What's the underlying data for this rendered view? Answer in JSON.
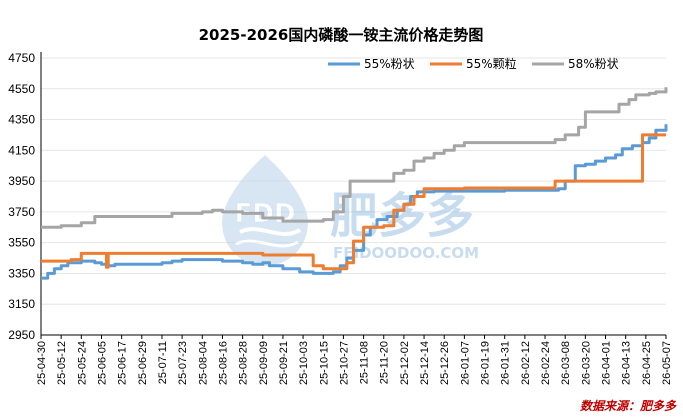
{
  "chart_data": {
    "type": "line",
    "title": "2025-2026国内磷酸一铵主流价格走势图",
    "xlabel": "",
    "ylabel": "",
    "ylim": [
      2950,
      4750
    ],
    "yticks": [
      2950,
      3150,
      3350,
      3550,
      3750,
      3950,
      4150,
      4350,
      4550,
      4750
    ],
    "xlim": [
      "2025-04-30",
      "2026-05-07"
    ],
    "xticks": [
      "25-04-30",
      "25-05-12",
      "25-05-24",
      "25-06-05",
      "25-06-17",
      "25-06-29",
      "25-07-11",
      "25-07-23",
      "25-08-04",
      "25-08-16",
      "25-08-28",
      "25-09-09",
      "25-09-21",
      "25-10-03",
      "25-10-15",
      "25-10-27",
      "25-11-08",
      "25-11-20",
      "25-12-02",
      "25-12-14",
      "25-12-26",
      "26-01-07",
      "26-01-19",
      "26-01-31",
      "26-02-12",
      "26-02-24",
      "26-03-08",
      "26-03-20",
      "26-04-01",
      "26-04-13",
      "26-04-25",
      "26-05-07"
    ],
    "legend_position": "top-right",
    "series": [
      {
        "name": "55%粉状",
        "color": "#5b9bd5",
        "points": [
          [
            "2025-04-30",
            3320
          ],
          [
            "2025-05-04",
            3350
          ],
          [
            "2025-05-08",
            3380
          ],
          [
            "2025-05-12",
            3400
          ],
          [
            "2025-05-16",
            3420
          ],
          [
            "2025-05-24",
            3430
          ],
          [
            "2025-06-01",
            3420
          ],
          [
            "2025-06-05",
            3410
          ],
          [
            "2025-06-09",
            3400
          ],
          [
            "2025-06-13",
            3410
          ],
          [
            "2025-06-29",
            3410
          ],
          [
            "2025-07-11",
            3420
          ],
          [
            "2025-07-17",
            3430
          ],
          [
            "2025-07-23",
            3440
          ],
          [
            "2025-08-04",
            3440
          ],
          [
            "2025-08-16",
            3430
          ],
          [
            "2025-08-28",
            3420
          ],
          [
            "2025-09-03",
            3410
          ],
          [
            "2025-09-09",
            3420
          ],
          [
            "2025-09-13",
            3400
          ],
          [
            "2025-09-21",
            3380
          ],
          [
            "2025-10-01",
            3360
          ],
          [
            "2025-10-09",
            3350
          ],
          [
            "2025-10-15",
            3350
          ],
          [
            "2025-10-21",
            3360
          ],
          [
            "2025-10-25",
            3400
          ],
          [
            "2025-10-29",
            3450
          ],
          [
            "2025-11-02",
            3500
          ],
          [
            "2025-11-08",
            3600
          ],
          [
            "2025-11-12",
            3650
          ],
          [
            "2025-11-16",
            3700
          ],
          [
            "2025-11-22",
            3720
          ],
          [
            "2025-11-28",
            3760
          ],
          [
            "2025-12-02",
            3800
          ],
          [
            "2025-12-06",
            3850
          ],
          [
            "2025-12-10",
            3880
          ],
          [
            "2025-12-14",
            3880
          ],
          [
            "2025-12-20",
            3885
          ],
          [
            "2026-01-07",
            3885
          ],
          [
            "2026-01-31",
            3890
          ],
          [
            "2026-02-24",
            3890
          ],
          [
            "2026-03-04",
            3900
          ],
          [
            "2026-03-08",
            3950
          ],
          [
            "2026-03-14",
            4050
          ],
          [
            "2026-03-20",
            4060
          ],
          [
            "2026-03-26",
            4080
          ],
          [
            "2026-04-01",
            4100
          ],
          [
            "2026-04-07",
            4120
          ],
          [
            "2026-04-11",
            4160
          ],
          [
            "2026-04-17",
            4180
          ],
          [
            "2026-04-23",
            4200
          ],
          [
            "2026-04-27",
            4230
          ],
          [
            "2026-05-01",
            4280
          ],
          [
            "2026-05-07",
            4320
          ]
        ]
      },
      {
        "name": "55%颗粒",
        "color": "#ed7d31",
        "points": [
          [
            "2025-04-30",
            3430
          ],
          [
            "2025-05-12",
            3430
          ],
          [
            "2025-05-18",
            3440
          ],
          [
            "2025-05-24",
            3480
          ],
          [
            "2025-06-05",
            3480
          ],
          [
            "2025-06-08",
            3390
          ],
          [
            "2025-06-09",
            3480
          ],
          [
            "2025-07-23",
            3480
          ],
          [
            "2025-08-28",
            3480
          ],
          [
            "2025-09-09",
            3470
          ],
          [
            "2025-09-21",
            3470
          ],
          [
            "2025-10-03",
            3470
          ],
          [
            "2025-10-09",
            3400
          ],
          [
            "2025-10-15",
            3380
          ],
          [
            "2025-10-23",
            3380
          ],
          [
            "2025-10-29",
            3420
          ],
          [
            "2025-11-02",
            3560
          ],
          [
            "2025-11-08",
            3650
          ],
          [
            "2025-11-20",
            3660
          ],
          [
            "2025-11-26",
            3760
          ],
          [
            "2025-12-02",
            3800
          ],
          [
            "2025-12-08",
            3850
          ],
          [
            "2025-12-14",
            3900
          ],
          [
            "2026-01-07",
            3905
          ],
          [
            "2026-02-24",
            3905
          ],
          [
            "2026-03-02",
            3950
          ],
          [
            "2026-04-01",
            3950
          ],
          [
            "2026-04-13",
            3950
          ],
          [
            "2026-04-22",
            3950
          ],
          [
            "2026-04-23",
            4250
          ],
          [
            "2026-05-07",
            4250
          ]
        ]
      },
      {
        "name": "58%粉状",
        "color": "#a5a5a5",
        "points": [
          [
            "2025-04-30",
            3650
          ],
          [
            "2025-05-12",
            3660
          ],
          [
            "2025-05-24",
            3680
          ],
          [
            "2025-06-01",
            3720
          ],
          [
            "2025-07-11",
            3720
          ],
          [
            "2025-07-17",
            3740
          ],
          [
            "2025-08-04",
            3750
          ],
          [
            "2025-08-10",
            3760
          ],
          [
            "2025-08-16",
            3750
          ],
          [
            "2025-08-28",
            3740
          ],
          [
            "2025-09-09",
            3710
          ],
          [
            "2025-09-21",
            3690
          ],
          [
            "2025-10-03",
            3690
          ],
          [
            "2025-10-15",
            3700
          ],
          [
            "2025-10-21",
            3750
          ],
          [
            "2025-10-27",
            3850
          ],
          [
            "2025-10-31",
            3950
          ],
          [
            "2025-11-08",
            3950
          ],
          [
            "2025-11-20",
            3950
          ],
          [
            "2025-11-26",
            4000
          ],
          [
            "2025-12-02",
            4020
          ],
          [
            "2025-12-08",
            4080
          ],
          [
            "2025-12-14",
            4100
          ],
          [
            "2025-12-20",
            4130
          ],
          [
            "2025-12-26",
            4150
          ],
          [
            "2026-01-01",
            4180
          ],
          [
            "2026-01-07",
            4200
          ],
          [
            "2026-02-24",
            4200
          ],
          [
            "2026-03-02",
            4220
          ],
          [
            "2026-03-08",
            4250
          ],
          [
            "2026-03-16",
            4300
          ],
          [
            "2026-03-20",
            4400
          ],
          [
            "2026-04-01",
            4400
          ],
          [
            "2026-04-09",
            4450
          ],
          [
            "2026-04-15",
            4480
          ],
          [
            "2026-04-19",
            4510
          ],
          [
            "2026-04-27",
            4520
          ],
          [
            "2026-05-01",
            4530
          ],
          [
            "2026-05-07",
            4560
          ]
        ]
      }
    ]
  },
  "watermark": {
    "brand_latin": "FDD",
    "brand_cn": "肥多多",
    "domain": "FEIDOODOO.COM"
  },
  "source_note": "数据来源：肥多多"
}
